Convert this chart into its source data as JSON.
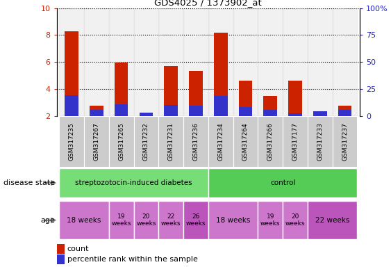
{
  "title": "GDS4025 / 1373902_at",
  "samples": [
    "GSM317235",
    "GSM317267",
    "GSM317265",
    "GSM317232",
    "GSM317231",
    "GSM317236",
    "GSM317234",
    "GSM317264",
    "GSM317266",
    "GSM317177",
    "GSM317233",
    "GSM317237"
  ],
  "count_values": [
    8.3,
    2.75,
    5.95,
    2.25,
    5.7,
    5.35,
    8.2,
    4.6,
    3.5,
    4.6,
    2.35,
    2.75
  ],
  "percentile_values": [
    3.55,
    2.45,
    2.9,
    2.25,
    2.8,
    2.75,
    3.5,
    2.65,
    2.45,
    2.2,
    2.35,
    2.45
  ],
  "ymin": 2,
  "ymax": 10,
  "yticks_left": [
    2,
    4,
    6,
    8,
    10
  ],
  "yticks_right": [
    0,
    25,
    50,
    75,
    100
  ],
  "bar_width": 0.55,
  "count_color": "#cc2200",
  "percentile_color": "#3333cc",
  "disease_state_groups": [
    {
      "label": "streptozotocin-induced diabetes",
      "start": 0,
      "end": 6,
      "color": "#77dd77"
    },
    {
      "label": "control",
      "start": 6,
      "end": 12,
      "color": "#55cc55"
    }
  ],
  "age_groups": [
    {
      "label": "18 weeks",
      "start": 0,
      "end": 2,
      "color": "#cc77cc",
      "fontsize": 7.5
    },
    {
      "label": "19\nweeks",
      "start": 2,
      "end": 3,
      "color": "#cc77cc",
      "fontsize": 6.5
    },
    {
      "label": "20\nweeks",
      "start": 3,
      "end": 4,
      "color": "#cc77cc",
      "fontsize": 6.5
    },
    {
      "label": "22\nweeks",
      "start": 4,
      "end": 5,
      "color": "#cc77cc",
      "fontsize": 6.5
    },
    {
      "label": "26\nweeks",
      "start": 5,
      "end": 6,
      "color": "#bb55bb",
      "fontsize": 6.5
    },
    {
      "label": "18 weeks",
      "start": 6,
      "end": 8,
      "color": "#cc77cc",
      "fontsize": 7.5
    },
    {
      "label": "19\nweeks",
      "start": 8,
      "end": 9,
      "color": "#cc77cc",
      "fontsize": 6.5
    },
    {
      "label": "20\nweeks",
      "start": 9,
      "end": 10,
      "color": "#cc77cc",
      "fontsize": 6.5
    },
    {
      "label": "22 weeks",
      "start": 10,
      "end": 12,
      "color": "#bb55bb",
      "fontsize": 7.5
    }
  ],
  "disease_state_label": "disease state",
  "age_label": "age",
  "background_color": "#ffffff",
  "tick_label_color_left": "#cc2200",
  "tick_label_color_right": "#2222cc",
  "xlabel_bg_color": "#cccccc",
  "n_samples": 12
}
